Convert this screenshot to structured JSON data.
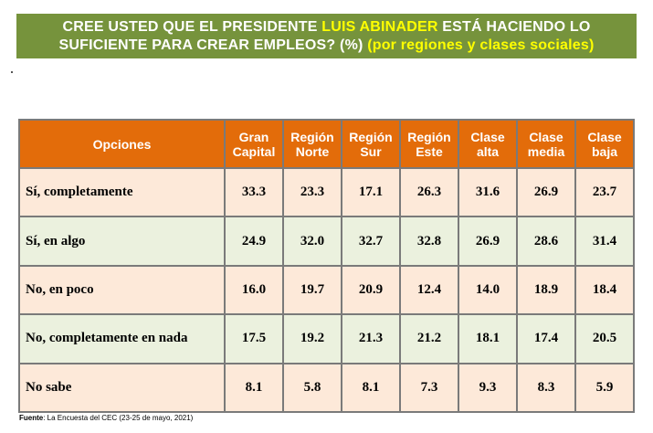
{
  "title": {
    "line1_a": "CREE USTED QUE EL PRESIDENTE ",
    "line1_highlight": "LUIS ABINADER",
    "line1_b": " ESTÁ HACIENDO LO",
    "line2_a": "SUFICIENTE PARA CREAR EMPLEOS? (%) ",
    "line2_highlight": "(por regiones y clases sociales)"
  },
  "colors": {
    "banner": "#76933c",
    "highlight": "#ffff00",
    "header": "#e36c0a",
    "row_odd": "#fde9d9",
    "row_even": "#ebf1de"
  },
  "chart_data": {
    "type": "table",
    "columns": [
      "Opciones",
      "Gran Capital",
      "Región Norte",
      "Región Sur",
      "Región Este",
      "Clase alta",
      "Clase media",
      "Clase baja"
    ],
    "header_lines": [
      [
        "Opciones"
      ],
      [
        "Gran",
        "Capital"
      ],
      [
        "Región",
        "Norte"
      ],
      [
        "Región",
        "Sur"
      ],
      [
        "Región",
        "Este"
      ],
      [
        "Clase",
        "alta"
      ],
      [
        "Clase",
        "media"
      ],
      [
        "Clase",
        "baja"
      ]
    ],
    "rows": [
      {
        "label": "Sí, completamente",
        "values": [
          "33.3",
          "23.3",
          "17.1",
          "26.3",
          "31.6",
          "26.9",
          "23.7"
        ]
      },
      {
        "label": "Sí, en algo",
        "values": [
          "24.9",
          "32.0",
          "32.7",
          "32.8",
          "26.9",
          "28.6",
          "31.4"
        ]
      },
      {
        "label": "No, en poco",
        "values": [
          "16.0",
          "19.7",
          "20.9",
          "12.4",
          "14.0",
          "18.9",
          "18.4"
        ]
      },
      {
        "label": "No, completamente en nada",
        "values": [
          "17.5",
          "19.2",
          "21.3",
          "21.2",
          "18.1",
          "17.4",
          "20.5"
        ]
      },
      {
        "label": "No sabe",
        "values": [
          "8.1",
          "5.8",
          "8.1",
          "7.3",
          "9.3",
          "8.3",
          "5.9"
        ]
      }
    ]
  },
  "source": {
    "label": "Fuente",
    "text": ": La Encuesta del CEC (23-25 de mayo, 2021)"
  }
}
